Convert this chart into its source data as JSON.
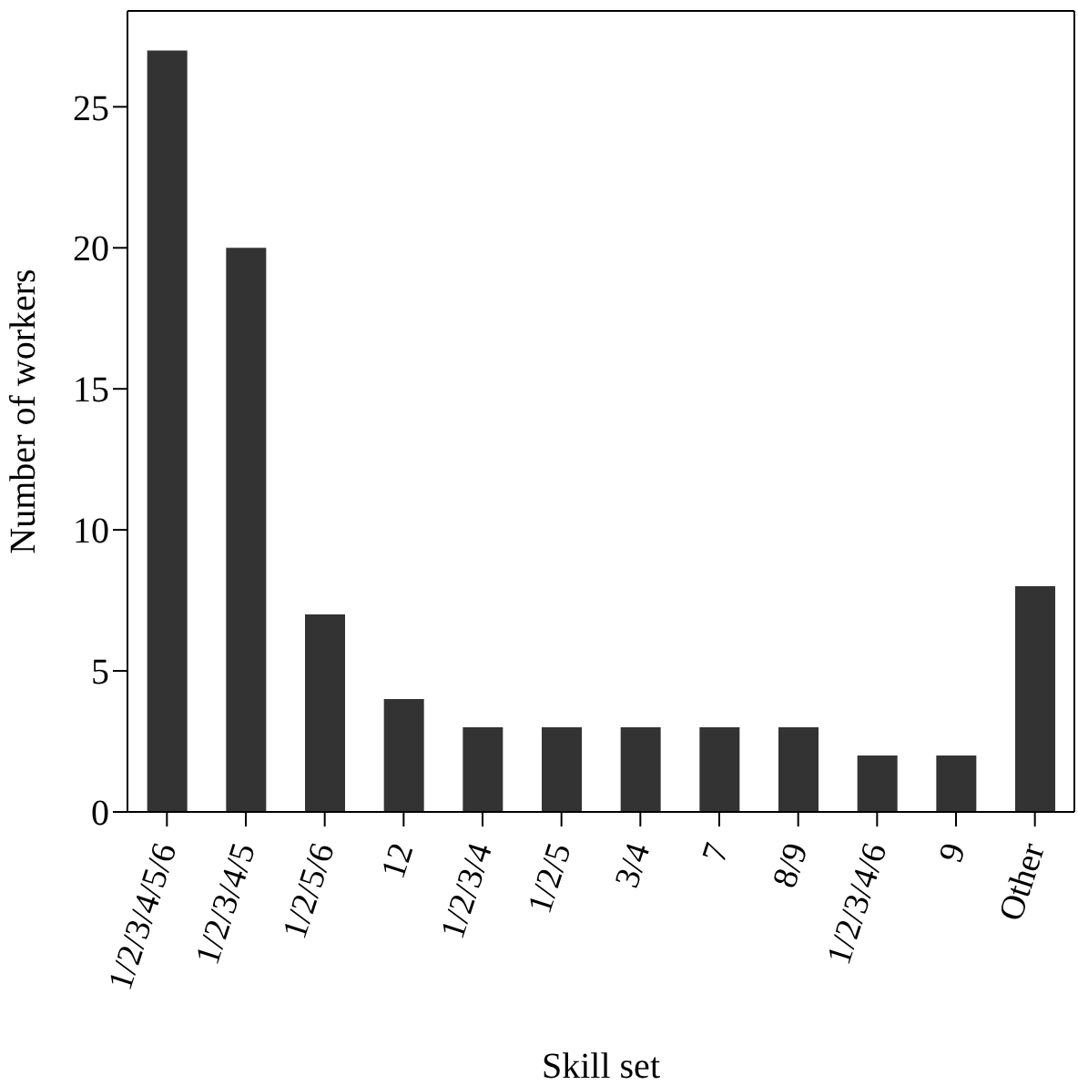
{
  "chart_data": {
    "type": "bar",
    "xlabel": "Skill set",
    "ylabel": "Number of workers",
    "categories": [
      "1/2/3/4/5/6",
      "1/2/3/4/5",
      "1/2/5/6",
      "12",
      "1/2/3/4",
      "1/2/5",
      "3/4",
      "7",
      "8/9",
      "1/2/3/4/6",
      "9",
      "Other"
    ],
    "values": [
      27,
      20,
      7,
      4,
      3,
      3,
      3,
      3,
      3,
      2,
      2,
      8
    ],
    "color": "#333333",
    "ylim": [
      0,
      28.4
    ],
    "yticks": [
      0,
      5,
      10,
      15,
      20,
      25
    ],
    "grid": false
  }
}
